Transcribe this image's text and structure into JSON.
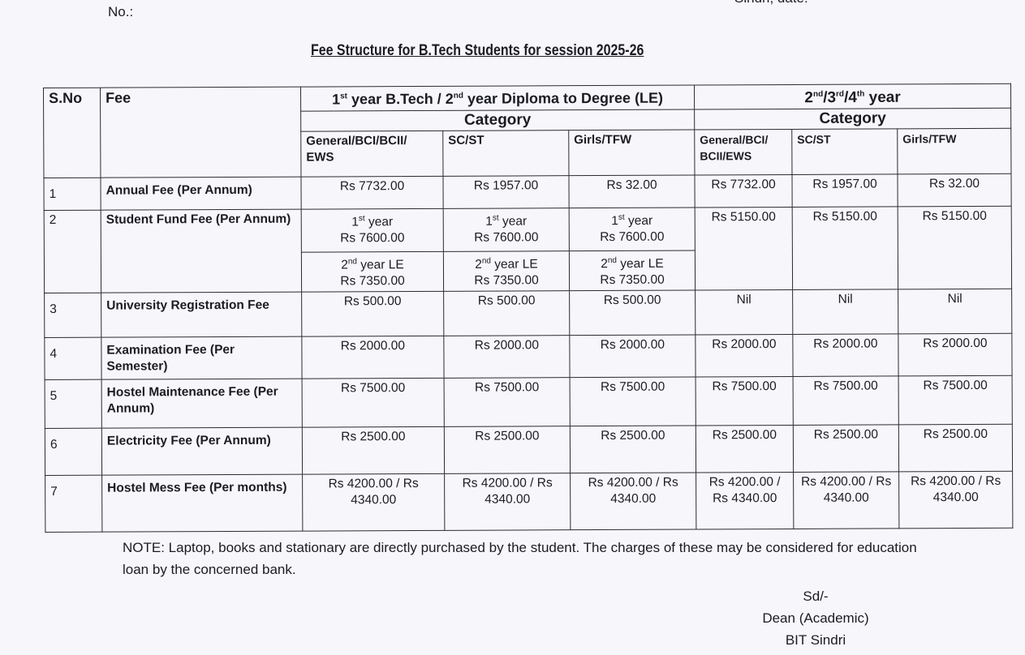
{
  "header": {
    "no_label": "No.:",
    "date_label": "Sindri, date:"
  },
  "title": "Fee Structure for B.Tech Students for session 2025-26",
  "table": {
    "sno_header": "S.No",
    "fee_header": "Fee",
    "group1": {
      "p1": "1",
      "s1": "st",
      "p2": " year B.Tech / 2",
      "s2": "nd",
      "p3": " year Diploma to Degree (LE)"
    },
    "group2": {
      "p1": "2",
      "s1": "nd",
      "p2": "/3",
      "s2": "rd",
      "p3": "/4",
      "s3": "th",
      "p4": " year"
    },
    "category": "Category",
    "columns": [
      "General/BCI/BCII/ EWS",
      "SC/ST",
      "Girls/TFW",
      "General/BCI/ BCII/EWS",
      "SC/ST",
      "Girls/TFW"
    ],
    "rows": [
      {
        "sno": "1",
        "fee": "Annual Fee (Per Annum)",
        "values": [
          "Rs 7732.00",
          "Rs 1957.00",
          "Rs 32.00",
          "Rs 7732.00",
          "Rs 1957.00",
          "Rs 32.00"
        ]
      },
      {
        "sno": "2",
        "fee": "Student Fund Fee (Per Annum)",
        "first_year": {
          "num": "1",
          "sup": "st",
          "label": " year",
          "values": [
            "Rs 7600.00",
            "Rs  7600.00",
            "Rs  7600.00"
          ]
        },
        "second_year_le": {
          "num": "2",
          "sup": "nd",
          "label": " year LE",
          "values": [
            "Rs  7350.00",
            "Rs  7350.00",
            "Rs  7350.00"
          ]
        },
        "values_later": [
          "Rs  5150.00",
          "Rs  5150.00",
          "Rs  5150.00"
        ]
      },
      {
        "sno": "3",
        "fee": "University Registration Fee",
        "values": [
          "Rs 500.00",
          "Rs 500.00",
          "Rs 500.00",
          "Nil",
          "Nil",
          "Nil"
        ]
      },
      {
        "sno": "4",
        "fee": "Examination Fee (Per Semester)",
        "values": [
          "Rs 2000.00",
          "Rs 2000.00",
          "Rs 2000.00",
          "Rs 2000.00",
          "Rs 2000.00",
          "Rs 2000.00"
        ]
      },
      {
        "sno": "5",
        "fee": "Hostel Maintenance Fee (Per Annum)",
        "values": [
          "Rs 7500.00",
          "Rs 7500.00",
          "Rs 7500.00",
          "Rs 7500.00",
          "Rs 7500.00",
          "Rs 7500.00"
        ]
      },
      {
        "sno": "6",
        "fee": "Electricity Fee (Per Annum)",
        "values": [
          "Rs 2500.00",
          "Rs 2500.00",
          "Rs 2500.00",
          "Rs 2500.00",
          "Rs 2500.00",
          "Rs 2500.00"
        ]
      },
      {
        "sno": "7",
        "fee": "Hostel Mess Fee (Per months)",
        "values": [
          "Rs 4200.00 / Rs 4340.00",
          "Rs 4200.00 / Rs 4340.00",
          "Rs 4200.00 / Rs 4340.00",
          "Rs 4200.00 / Rs 4340.00",
          "Rs 4200.00 / Rs 4340.00",
          "Rs 4200.00 / Rs 4340.00"
        ]
      }
    ]
  },
  "note": "NOTE: Laptop, books and stationary are directly purchased by the student. The charges of these may be considered for education loan by the concerned bank.",
  "signature": {
    "sd": "Sd/-",
    "designation": "Dean (Academic)",
    "institute": "BIT Sindri"
  }
}
